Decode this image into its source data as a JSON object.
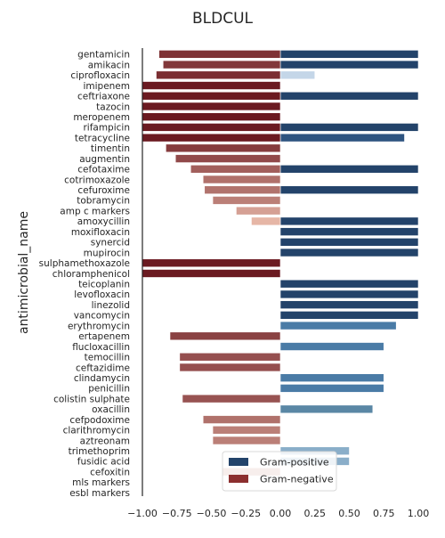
{
  "chart_data": {
    "type": "bar",
    "orientation": "horizontal",
    "title": "BLDCUL",
    "xlabel": "",
    "ylabel": "antimicrobial_name",
    "xlim": [
      -1.0,
      1.0
    ],
    "x_ticks": [
      -1.0,
      -0.75,
      -0.5,
      -0.25,
      0.0,
      0.25,
      0.5,
      0.75,
      1.0
    ],
    "x_tick_labels": [
      "−1.00",
      "−0.75",
      "−0.50",
      "−0.25",
      "0.00",
      "0.25",
      "0.50",
      "0.75",
      "1.00"
    ],
    "grid": false,
    "legend_position": "bottom-center",
    "categories": [
      "gentamicin",
      "amikacin",
      "ciprofloxacin",
      "imipenem",
      "ceftriaxone",
      "tazocin",
      "meropenem",
      "rifampicin",
      "tetracycline",
      "timentin",
      "augmentin",
      "cefotaxime",
      "cotrimoxazole",
      "cefuroxime",
      "tobramycin",
      "amp c markers",
      "amoxycillin",
      "moxifloxacin",
      "synercid",
      "mupirocin",
      "sulphamethoxazole",
      "chloramphenicol",
      "teicoplanin",
      "levofloxacin",
      "linezolid",
      "vancomycin",
      "erythromycin",
      "ertapenem",
      "flucloxacillin",
      "temocillin",
      "ceftazidime",
      "clindamycin",
      "penicillin",
      "colistin sulphate",
      "oxacillin",
      "cefpodoxime",
      "clarithromycin",
      "aztreonam",
      "trimethoprim",
      "fusidic acid",
      "cefoxitin",
      "mls markers",
      "esbl markers"
    ],
    "series": [
      {
        "name": "Gram-positive",
        "color": "#23436a",
        "values": [
          1.0,
          1.0,
          0.25,
          null,
          1.0,
          null,
          null,
          1.0,
          0.9,
          null,
          null,
          1.0,
          null,
          1.0,
          null,
          null,
          1.0,
          1.0,
          1.0,
          1.0,
          null,
          null,
          1.0,
          1.0,
          1.0,
          1.0,
          0.84,
          null,
          0.75,
          null,
          null,
          0.75,
          0.75,
          null,
          0.67,
          null,
          null,
          null,
          0.5,
          0.5,
          null,
          null,
          null
        ]
      },
      {
        "name": "Gram-negative",
        "color": "#8c2f2f",
        "values": [
          -0.88,
          -0.85,
          -0.9,
          -1.0,
          -1.0,
          -1.0,
          -1.0,
          -1.0,
          -1.0,
          -0.83,
          -0.76,
          -0.65,
          -0.56,
          -0.55,
          -0.49,
          -0.32,
          -0.21,
          null,
          null,
          null,
          -1.0,
          -1.0,
          null,
          null,
          null,
          null,
          null,
          -0.8,
          null,
          -0.73,
          -0.73,
          null,
          null,
          -0.71,
          null,
          -0.56,
          -0.49,
          -0.49,
          null,
          null,
          -0.42,
          null,
          null
        ]
      }
    ]
  }
}
